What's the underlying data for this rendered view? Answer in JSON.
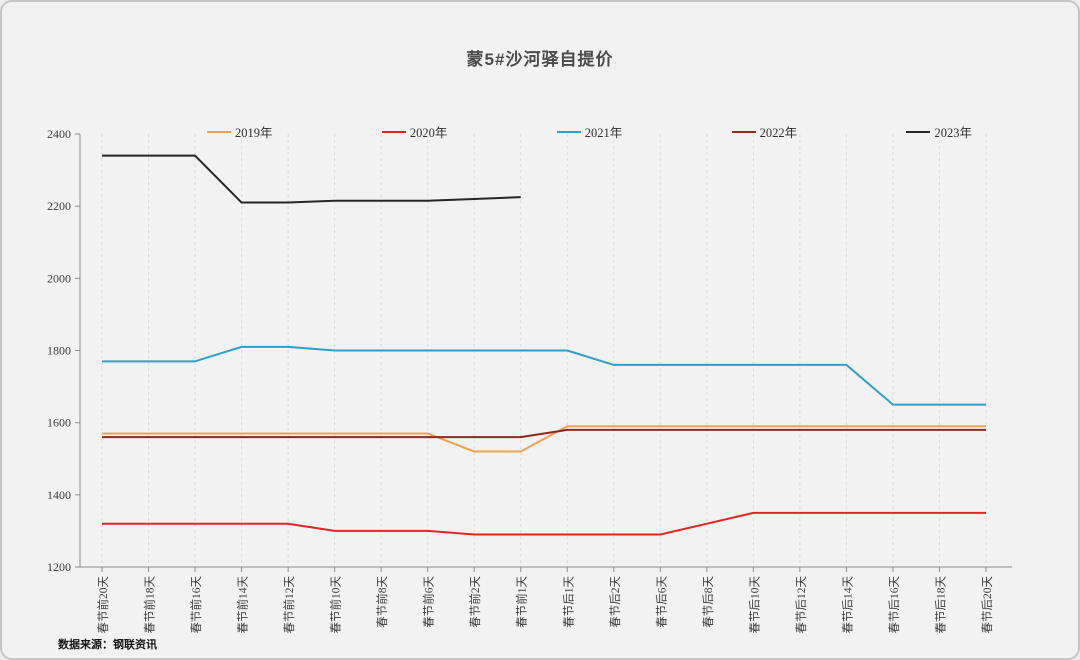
{
  "page": {
    "title": "蒙5#沙河驿自提价",
    "source_note": "数据来源：钢联资讯"
  },
  "chart_data": {
    "type": "line",
    "title": "蒙5#沙河驿自提价",
    "source": "数据来源：钢联资讯",
    "xlabel": "",
    "ylabel": "",
    "ylim": [
      1200,
      2400
    ],
    "yticks": [
      1200,
      1400,
      1600,
      1800,
      2000,
      2200,
      2400
    ],
    "grid": "vertical-dashed",
    "legend_position": "top",
    "axis_color": "#8c8c8c",
    "grid_color": "#dcdcdc",
    "tick_label_color": "#3c3c3c",
    "categories": [
      "春节前20天",
      "春节前18天",
      "春节前16天",
      "春节前14天",
      "春节前12天",
      "春节前10天",
      "春节前8天",
      "春节前6天",
      "春节前2天",
      "春节前1天",
      "春节后1天",
      "春节后2天",
      "春节后6天",
      "春节后8天",
      "春节后10天",
      "春节后12天",
      "春节后14天",
      "春节后16天",
      "春节后18天",
      "春节后20天"
    ],
    "series": [
      {
        "name": "2019年",
        "color": "#F2A154",
        "values": [
          1570,
          1570,
          1570,
          1570,
          1570,
          1570,
          1570,
          1570,
          1520,
          1520,
          1590,
          1590,
          1590,
          1590,
          1590,
          1590,
          1590,
          1590,
          1590,
          1590
        ]
      },
      {
        "name": "2020年",
        "color": "#E32424",
        "values": [
          1320,
          1320,
          1320,
          1320,
          1320,
          1300,
          1300,
          1300,
          1290,
          1290,
          1290,
          1290,
          1290,
          1320,
          1350,
          1350,
          1350,
          1350,
          1350,
          1350
        ]
      },
      {
        "name": "2021年",
        "color": "#2FA0C8",
        "values": [
          1770,
          1770,
          1770,
          1810,
          1810,
          1800,
          1800,
          1800,
          1800,
          1800,
          1800,
          1760,
          1760,
          1760,
          1760,
          1760,
          1760,
          1650,
          1650,
          1650
        ]
      },
      {
        "name": "2022年",
        "color": "#8C2A22",
        "values": [
          1560,
          1560,
          1560,
          1560,
          1560,
          1560,
          1560,
          1560,
          1560,
          1560,
          1580,
          1580,
          1580,
          1580,
          1580,
          1580,
          1580,
          1580,
          1580,
          1580
        ]
      },
      {
        "name": "2023年",
        "color": "#262626",
        "values": [
          2340,
          2340,
          2340,
          2210,
          2210,
          2215,
          2215,
          2215,
          2220,
          2225,
          null,
          null,
          null,
          null,
          null,
          null,
          null,
          null,
          null,
          null
        ]
      }
    ]
  }
}
